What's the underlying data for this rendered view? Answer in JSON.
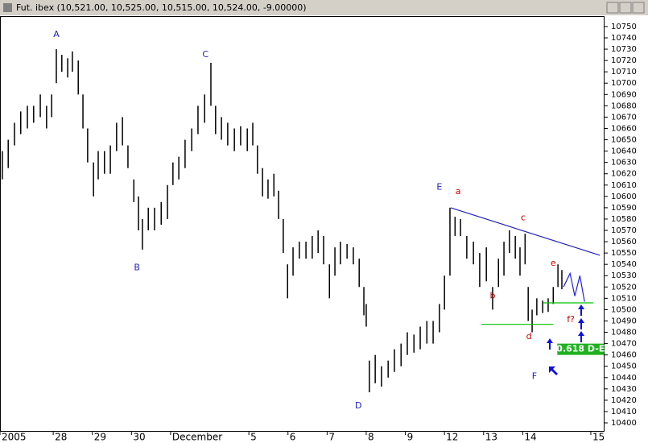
{
  "chart_data": {
    "type": "range-bar",
    "title": "Fut. ibex (10,521.00, 10,525.00, 10,515.00, 10,524.00, -9.00000)",
    "color": "#000000",
    "x": [
      -0.3,
      -0.15,
      0.01,
      0.17,
      0.34,
      0.5,
      0.67,
      0.83,
      0.96,
      1.08,
      1.22,
      1.37,
      1.49,
      1.64,
      1.76,
      1.88,
      2.03,
      2.15,
      2.31,
      2.46,
      2.62,
      2.77,
      2.91,
      3.06,
      3.18,
      3.28,
      3.43,
      3.59,
      3.76,
      3.92,
      4.06,
      4.21,
      4.37,
      4.54,
      4.7,
      4.87,
      5.03,
      5.15,
      5.3,
      5.46,
      5.63,
      5.79,
      5.96,
      6.1,
      6.22,
      6.35,
      6.49,
      6.64,
      6.76,
      6.88,
      6.99,
      7.13,
      7.29,
      7.46,
      7.62,
      7.77,
      7.91,
      8.06,
      8.2,
      8.34,
      8.51,
      8.67,
      8.82,
      8.94,
      9.0,
      9.08,
      9.23,
      9.39,
      9.56,
      9.72,
      9.89,
      10.05,
      10.22,
      10.38,
      10.55,
      10.71,
      10.87,
      11.0,
      11.14,
      11.27,
      11.41,
      11.57,
      11.74,
      11.9,
      12.07,
      12.23,
      12.38,
      12.52,
      12.66,
      12.81,
      12.93,
      13.06,
      13.14,
      13.24,
      13.36,
      13.51,
      13.65,
      13.78,
      13.9,
      14.0
    ],
    "highs": [
      10640,
      10650,
      10665,
      10675,
      10680,
      10680,
      10690,
      10680,
      10690,
      10730,
      10725,
      10722,
      10728,
      10720,
      10690,
      10660,
      10630,
      10640,
      10640,
      10645,
      10665,
      10670,
      10645,
      10615,
      10600,
      10580,
      10590,
      10590,
      10595,
      10610,
      10630,
      10635,
      10650,
      10660,
      10680,
      10690,
      10718,
      10680,
      10670,
      10665,
      10660,
      10662,
      10660,
      10665,
      10645,
      10625,
      10615,
      10620,
      10605,
      10580,
      10540,
      10555,
      10560,
      10560,
      10565,
      10570,
      10565,
      10540,
      10555,
      10560,
      10558,
      10555,
      10545,
      10520,
      10505,
      10455,
      10460,
      10450,
      10455,
      10465,
      10470,
      10480,
      10478,
      10485,
      10490,
      10490,
      10505,
      10530,
      10590,
      10582,
      10580,
      10565,
      10560,
      10550,
      10555,
      10520,
      10545,
      10560,
      10570,
      10565,
      10555,
      10567,
      10520,
      10500,
      10510,
      10508,
      10510,
      10520,
      10540,
      10535
    ],
    "lows": [
      10615,
      10625,
      10645,
      10655,
      10660,
      10665,
      10670,
      10660,
      10670,
      10700,
      10710,
      10705,
      10710,
      10690,
      10660,
      10630,
      10600,
      10615,
      10620,
      10620,
      10640,
      10645,
      10625,
      10595,
      10570,
      10553,
      10570,
      10570,
      10575,
      10580,
      10610,
      10615,
      10625,
      10640,
      10655,
      10665,
      10680,
      10655,
      10650,
      10645,
      10640,
      10645,
      10640,
      10645,
      10620,
      10600,
      10598,
      10600,
      10580,
      10550,
      10510,
      10530,
      10545,
      10545,
      10545,
      10550,
      10540,
      10510,
      10530,
      10540,
      10545,
      10540,
      10520,
      10495,
      10485,
      10427,
      10435,
      10432,
      10440,
      10445,
      10450,
      10460,
      10462,
      10465,
      10470,
      10470,
      10480,
      10500,
      10530,
      10565,
      10565,
      10545,
      10540,
      10520,
      10525,
      10500,
      10520,
      10530,
      10550,
      10545,
      10530,
      10540,
      10490,
      10480,
      10495,
      10497,
      10498,
      10505,
      10520,
      10518
    ],
    "xlim": [
      -0.36,
      15.07
    ],
    "ylim": [
      10392.9,
      10759.2
    ],
    "xticks": [
      {
        "value": -0.36,
        "label": "2005"
      },
      {
        "value": 1,
        "label": "28"
      },
      {
        "value": 2,
        "label": "29"
      },
      {
        "value": 3,
        "label": "30"
      },
      {
        "value": 4,
        "label": "December"
      },
      {
        "value": 6,
        "label": "5"
      },
      {
        "value": 7,
        "label": "6"
      },
      {
        "value": 8,
        "label": "7"
      },
      {
        "value": 9,
        "label": "8"
      },
      {
        "value": 10,
        "label": "9"
      },
      {
        "value": 11,
        "label": "12"
      },
      {
        "value": 12,
        "label": "13"
      },
      {
        "value": 13,
        "label": "14"
      },
      {
        "value": 14.74,
        "label": "15"
      }
    ],
    "yticks": [
      10400,
      10410,
      10420,
      10430,
      10440,
      10450,
      10460,
      10470,
      10480,
      10490,
      10500,
      10510,
      10520,
      10530,
      10540,
      10550,
      10560,
      10570,
      10580,
      10590,
      10600,
      10610,
      10620,
      10630,
      10640,
      10650,
      10660,
      10670,
      10680,
      10690,
      10700,
      10710,
      10720,
      10730,
      10740,
      10750
    ],
    "lines": [
      {
        "color": "#2020c0",
        "x": [
          11.16,
          14.97
        ],
        "y": [
          10590,
          10548
        ]
      },
      {
        "color": "#00c000",
        "x": [
          11.94,
          13.78
        ],
        "y": [
          10487,
          10487
        ]
      },
      {
        "color": "#00c000",
        "x": [
          13.53,
          14.8
        ],
        "y": [
          10506,
          10506
        ]
      },
      {
        "color": "#2020e0",
        "x": [
          14.04,
          14.21,
          14.33,
          14.46,
          14.58
        ],
        "y": [
          10520,
          10532,
          10512,
          10530,
          10507
        ]
      }
    ],
    "annotations": [
      {
        "text": "A",
        "x": 1.08,
        "y": 10743,
        "color": "#2020c0"
      },
      {
        "text": "B",
        "x": 3.14,
        "y": 10537,
        "color": "#2020c0"
      },
      {
        "text": "C",
        "x": 4.89,
        "y": 10725,
        "color": "#2020c0"
      },
      {
        "text": "D",
        "x": 8.8,
        "y": 10415,
        "color": "#2020c0"
      },
      {
        "text": "E",
        "x": 10.87,
        "y": 10608,
        "color": "#2020c0"
      },
      {
        "text": "F",
        "x": 13.3,
        "y": 10441,
        "color": "#2020c0"
      },
      {
        "text": "a",
        "x": 11.35,
        "y": 10604,
        "color": "#d00000"
      },
      {
        "text": "b",
        "x": 12.23,
        "y": 10512,
        "color": "#d00000"
      },
      {
        "text": "c",
        "x": 13.01,
        "y": 10581,
        "color": "#d00000"
      },
      {
        "text": "d",
        "x": 13.16,
        "y": 10476,
        "color": "#d00000"
      },
      {
        "text": "e",
        "x": 13.78,
        "y": 10541,
        "color": "#d00000"
      },
      {
        "text": "f?",
        "x": 14.23,
        "y": 10491,
        "color": "#d00000"
      }
    ],
    "box_label": {
      "text": "0.618 D-E",
      "x": 14.48,
      "y": 10465,
      "color": "#20b020"
    }
  }
}
